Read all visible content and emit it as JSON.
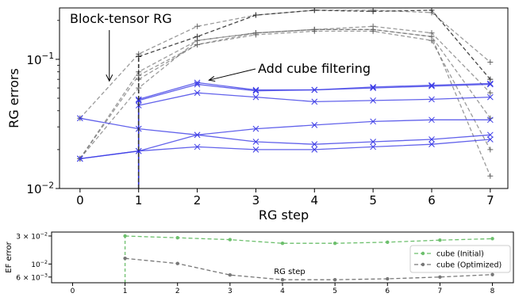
{
  "chart_data": [
    {
      "type": "line",
      "xlabel": "RG step",
      "ylabel": "RG errors",
      "yscale": "log",
      "x_ticks": [
        "0",
        "1",
        "2",
        "3",
        "4",
        "5",
        "6",
        "7"
      ],
      "y_ticks": [
        {
          "value": 0.01,
          "base": "10",
          "exp": "−2"
        },
        {
          "value": 0.1,
          "base": "10",
          "exp": "−1"
        }
      ],
      "xlim": [
        -0.35,
        7.3
      ],
      "ylim": [
        0.01,
        0.25
      ],
      "grid": false,
      "colors": {
        "blue": "#3b3be6",
        "gray": "#666666",
        "dark": "#333333"
      },
      "annotations": [
        {
          "text": "Block-tensor RG",
          "arrow_to": {
            "x": 0.5,
            "y": 0.068
          }
        },
        {
          "text": "Add cube filtering",
          "arrow_to": {
            "x": 2.2,
            "y": 0.069
          }
        }
      ],
      "series": [
        {
          "group": "blue",
          "x": [
            1,
            2,
            3,
            4,
            5,
            6,
            7
          ],
          "values": [
            0.049,
            0.066,
            0.058,
            0.058,
            0.061,
            0.063,
            0.065
          ]
        },
        {
          "group": "blue",
          "x": [
            1,
            2,
            3,
            4,
            5,
            6,
            7
          ],
          "values": [
            0.048,
            0.064,
            0.057,
            0.058,
            0.06,
            0.062,
            0.064
          ]
        },
        {
          "group": "blue",
          "x": [
            1,
            2,
            3,
            4,
            5,
            6,
            7
          ],
          "values": [
            0.044,
            0.055,
            0.051,
            0.047,
            0.048,
            0.049,
            0.051
          ]
        },
        {
          "group": "blue",
          "x": [
            0,
            1,
            2,
            3,
            4,
            5,
            6,
            7
          ],
          "values": [
            0.035,
            0.029,
            0.026,
            0.029,
            0.031,
            0.033,
            0.034,
            0.034
          ]
        },
        {
          "group": "blue",
          "x": [
            0,
            1,
            2,
            3,
            4,
            5,
            6,
            7
          ],
          "values": [
            0.017,
            0.0195,
            0.026,
            0.023,
            0.022,
            0.023,
            0.024,
            0.026
          ]
        },
        {
          "group": "blue",
          "x": [
            0,
            1,
            2,
            3,
            4,
            5,
            6,
            7
          ],
          "values": [
            0.017,
            0.0195,
            0.021,
            0.02,
            0.02,
            0.021,
            0.022,
            0.024
          ]
        },
        {
          "group": "gray",
          "x": [
            0,
            1,
            2,
            3,
            4,
            5,
            6,
            7
          ],
          "values": [
            0.035,
            0.11,
            0.18,
            0.22,
            0.24,
            0.24,
            0.23,
            0.095
          ]
        },
        {
          "group": "gray",
          "x": [
            0,
            1,
            2,
            3,
            4,
            5,
            6,
            7
          ],
          "values": [
            0.017,
            0.08,
            0.14,
            0.16,
            0.17,
            0.18,
            0.16,
            0.055
          ]
        },
        {
          "group": "gray",
          "x": [
            0,
            1,
            2,
            3,
            4,
            5,
            6,
            7
          ],
          "values": [
            0.017,
            0.075,
            0.13,
            0.16,
            0.17,
            0.17,
            0.15,
            0.035
          ]
        },
        {
          "group": "gray",
          "x": [
            1,
            2,
            3,
            4,
            5,
            6,
            7
          ],
          "values": [
            0.07,
            0.13,
            0.155,
            0.165,
            0.165,
            0.14,
            0.02
          ]
        },
        {
          "group": "gray",
          "x": [
            0,
            1,
            2,
            3,
            4,
            5,
            6,
            7
          ],
          "values": [
            0.017,
            0.06,
            0.14,
            0.16,
            0.17,
            0.17,
            0.15,
            0.0125
          ]
        },
        {
          "group": "dark",
          "x": [
            1,
            2,
            3,
            4,
            5,
            6,
            7
          ],
          "values": [
            0.105,
            0.15,
            0.22,
            0.24,
            0.235,
            0.24,
            0.07
          ]
        }
      ],
      "vertical_markers": [
        {
          "x": 1,
          "from": 0.01,
          "to": 0.049,
          "color": "#2222cc",
          "style": "solid"
        },
        {
          "x": 1,
          "from": 0.01,
          "to": 0.105,
          "color": "#333333",
          "style": "dashed"
        }
      ]
    },
    {
      "type": "line",
      "ylabel": "EF error",
      "inner_label": "RG step",
      "yscale": "log",
      "x_ticks": [
        "0",
        "1",
        "2",
        "3",
        "4",
        "5",
        "6",
        "7",
        "8"
      ],
      "xlim": [
        -0.4,
        8.4
      ],
      "ylim": [
        0.0048,
        0.035
      ],
      "y_ticks": [
        {
          "value": 0.03,
          "base": "3 × 10",
          "exp": "−2"
        },
        {
          "value": 0.01,
          "base": "10",
          "exp": "−2"
        },
        {
          "value": 0.006,
          "base": "6 × 10",
          "exp": "−3"
        }
      ],
      "legend": {
        "placement": "lower-right"
      },
      "series": [
        {
          "name": "cube (Initial)",
          "color": "#6cbf6c",
          "x": [
            1,
            2,
            3,
            4,
            5,
            6,
            7,
            8
          ],
          "values": [
            0.03,
            0.028,
            0.026,
            0.0225,
            0.0225,
            0.0235,
            0.0255,
            0.027
          ]
        },
        {
          "name": "cube (Optimized)",
          "color": "#777777",
          "x": [
            1,
            2,
            3,
            4,
            5,
            6,
            7,
            8
          ],
          "values": [
            0.0125,
            0.0102,
            0.0065,
            0.0054,
            0.0054,
            0.0056,
            0.006,
            0.0066
          ]
        }
      ],
      "vertical_markers": [
        {
          "x": 1,
          "from": 0.0048,
          "to": 0.03,
          "color": "#6cbf6c",
          "style": "dashed"
        }
      ]
    }
  ]
}
